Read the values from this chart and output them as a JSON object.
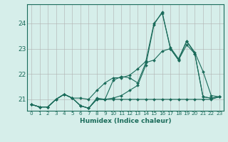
{
  "title": "",
  "xlabel": "Humidex (Indice chaleur)",
  "ylabel": "",
  "bg_color": "#d6eeea",
  "grid_color": "#b0b0b0",
  "line_color": "#1a6b5a",
  "xlim": [
    -0.5,
    23.5
  ],
  "ylim": [
    20.55,
    24.75
  ],
  "yticks": [
    21,
    22,
    23,
    24
  ],
  "xticks": [
    0,
    1,
    2,
    3,
    4,
    5,
    6,
    7,
    8,
    9,
    10,
    11,
    12,
    13,
    14,
    15,
    16,
    17,
    18,
    19,
    20,
    21,
    22,
    23
  ],
  "series": [
    [
      20.8,
      20.7,
      20.7,
      21.0,
      21.2,
      21.05,
      20.75,
      20.65,
      21.05,
      21.0,
      21.75,
      21.9,
      21.85,
      21.65,
      22.45,
      22.55,
      22.9,
      23.0,
      22.55,
      23.15,
      22.8,
      21.1,
      21.05,
      21.1
    ],
    [
      20.8,
      20.7,
      20.7,
      21.0,
      21.2,
      21.05,
      20.75,
      20.65,
      21.0,
      21.0,
      21.0,
      21.0,
      21.0,
      21.0,
      21.0,
      21.0,
      21.0,
      21.0,
      21.0,
      21.0,
      21.0,
      21.0,
      21.0,
      21.1
    ],
    [
      20.8,
      20.7,
      20.7,
      21.0,
      21.2,
      21.05,
      21.05,
      21.0,
      21.35,
      21.65,
      21.85,
      21.85,
      21.95,
      22.2,
      22.5,
      24.0,
      24.4,
      23.05,
      22.6,
      23.3,
      22.85,
      22.1,
      21.15,
      21.1
    ],
    [
      20.8,
      20.7,
      20.7,
      21.0,
      21.2,
      21.05,
      20.75,
      20.65,
      21.0,
      21.0,
      21.05,
      21.15,
      21.35,
      21.55,
      22.35,
      23.95,
      24.45,
      23.0,
      22.55,
      23.3,
      22.8,
      21.1,
      21.05,
      21.1
    ]
  ]
}
